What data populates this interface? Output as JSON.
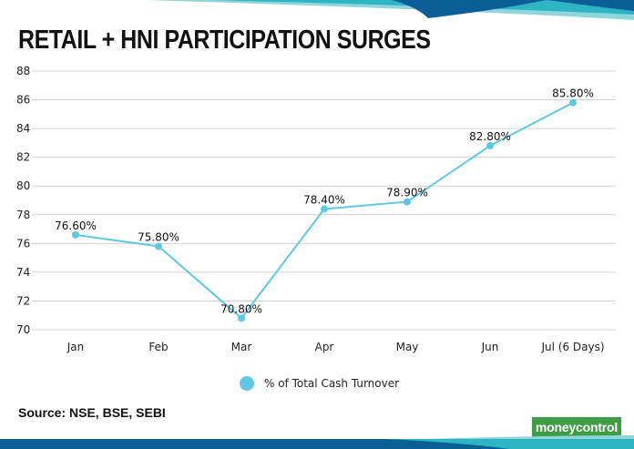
{
  "header": {
    "title": "RETAIL + HNI PARTICIPATION SURGES"
  },
  "chart_data": {
    "type": "line",
    "title": "RETAIL + HNI PARTICIPATION SURGES",
    "categories": [
      "Jan",
      "Feb",
      "Mar",
      "Apr",
      "May",
      "Jun",
      "Jul (6 Days)"
    ],
    "series": [
      {
        "name": "% of Total Cash Turnover",
        "values": [
          76.6,
          75.8,
          70.8,
          78.4,
          78.9,
          82.8,
          85.8
        ],
        "labels": [
          "76.60%",
          "75.80%",
          "70.80%",
          "78.40%",
          "78.90%",
          "82.80%",
          "85.80%"
        ]
      }
    ],
    "ylim": [
      70,
      88
    ],
    "yticks": [
      "70",
      "72",
      "74",
      "76",
      "78",
      "80",
      "82",
      "84",
      "86",
      "88"
    ],
    "grid": true,
    "legend": "bottom-center"
  },
  "legend": {
    "label": "% of Total Cash Turnover"
  },
  "footer": {
    "source": "Source: NSE, BSE, SEBI",
    "logo_part1": "money",
    "logo_part2": "control"
  },
  "colors": {
    "series": "#5ec8e2",
    "grid": "#d4d4d4",
    "deco_dark": "#0b5e96",
    "deco_teal": "#2eb5c4",
    "deco_light": "#8fd6dc",
    "logo_green": "#3f9e44"
  }
}
